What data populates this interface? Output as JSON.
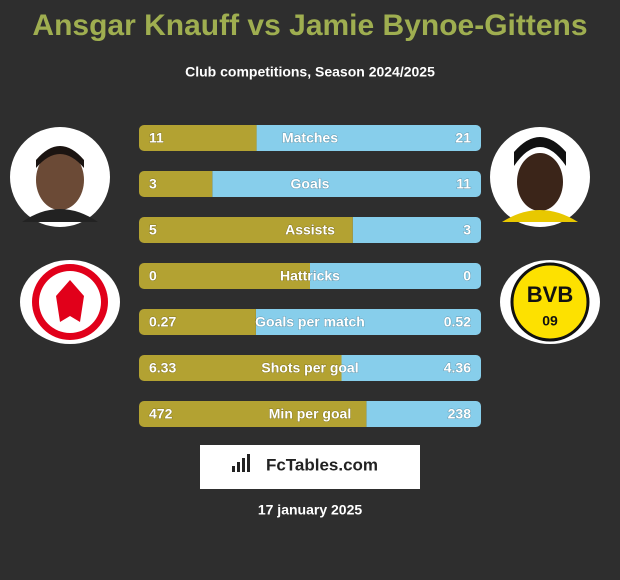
{
  "header": {
    "title": "Ansgar Knauff vs Jamie Bynoe-Gittens",
    "subtitle": "Club competitions, Season 2024/2025"
  },
  "rows": [
    {
      "label": "Matches",
      "left": 11,
      "right": 21
    },
    {
      "label": "Goals",
      "left": 3,
      "right": 11
    },
    {
      "label": "Assists",
      "left": 5,
      "right": 3
    },
    {
      "label": "Hattricks",
      "left": 0,
      "right": 0
    },
    {
      "label": "Goals per match",
      "left": 0.27,
      "right": 0.52
    },
    {
      "label": "Shots per goal",
      "left": 6.33,
      "right": 4.36
    },
    {
      "label": "Min per goal",
      "left": 472,
      "right": 238
    }
  ],
  "brand": "FcTables.com",
  "date": "17 january 2025"
}
